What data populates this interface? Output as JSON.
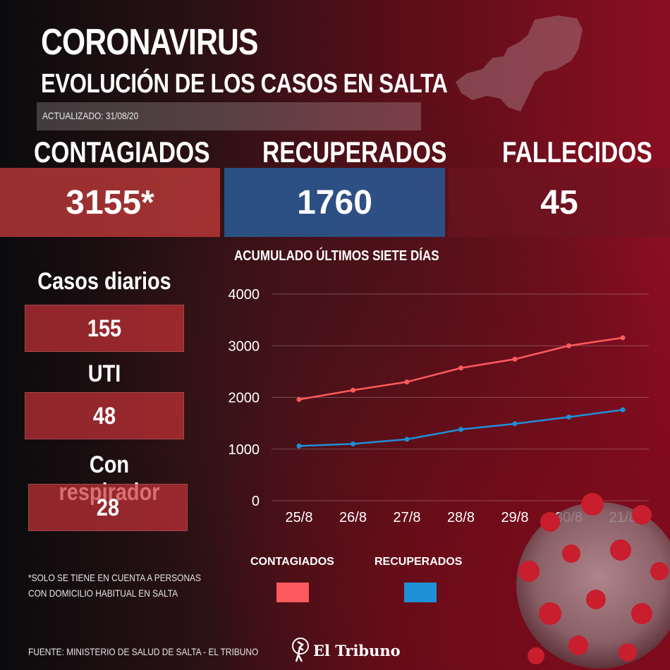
{
  "header": {
    "title": "CORONAVIRUS",
    "subtitle": "EVOLUCIÓN DE LOS CASOS EN SALTA",
    "updated": "ACTUALIZADO: 31/08/20"
  },
  "stats": {
    "contagiados_label": "CONTAGIADOS",
    "contagiados_value": "3155*",
    "recuperados_label": "RECUPERADOS",
    "recuperados_value": "1760",
    "fallecidos_label": "FALLECIDOS",
    "fallecidos_value": "45"
  },
  "side": {
    "daily_label": "Casos diarios",
    "daily_value": "155",
    "uti_label": "UTI",
    "uti_value": "48",
    "resp_label": "Con respirador",
    "resp_value": "28"
  },
  "footnote": {
    "line1": "*SOLO SE TIENE EN CUENTA A PERSONAS",
    "line2": "CON DOMICILIO HABITUAL EN SALTA"
  },
  "footer": {
    "source": "FUENTE: MINISTERIO DE SALUD DE SALTA - EL TRIBUNO",
    "brand": "El Tribuno"
  },
  "colors": {
    "contagiados": "#ff5a5f",
    "recuperados": "#1e90d8",
    "accent_red": "#c83c3c",
    "accent_blue": "#285a96"
  },
  "icons": {
    "map": "salta-map-silhouette",
    "brand": "el-tribuno-logo-icon",
    "virus": "coronavirus-illustration"
  },
  "chart_data": {
    "type": "line",
    "title": "ACUMULADO ÚLTIMOS SIETE DÍAS",
    "categories": [
      "25/8",
      "26/8",
      "27/8",
      "28/8",
      "29/8",
      "30/8",
      "21/8"
    ],
    "series": [
      {
        "name": "CONTAGIADOS",
        "color": "#ff5a5f",
        "values": [
          1960,
          2140,
          2300,
          2570,
          2740,
          3000,
          3155
        ]
      },
      {
        "name": "RECUPERADOS",
        "color": "#1e90d8",
        "values": [
          1060,
          1100,
          1190,
          1380,
          1490,
          1620,
          1760
        ]
      }
    ],
    "yticks": [
      0,
      1000,
      2000,
      3000,
      4000
    ],
    "ylim": [
      0,
      4000
    ],
    "grid": true,
    "legend": "bottom"
  }
}
